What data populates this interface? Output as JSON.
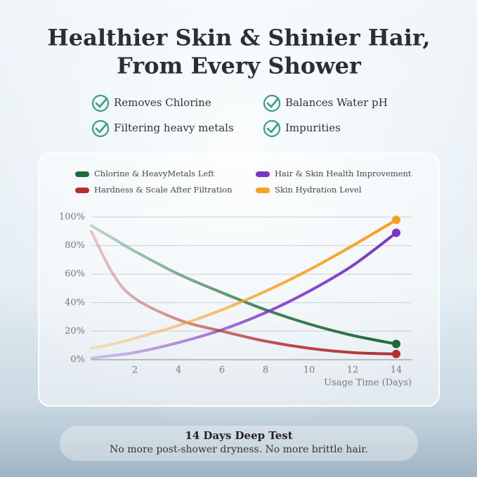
{
  "header": {
    "title": [
      "Healthier Skin & Shinier Hair,",
      "From Every Shower"
    ]
  },
  "features": [
    "Removes Chlorine",
    "Balances Water pH",
    "Filtering heavy metals",
    "Impurities"
  ],
  "chart_data": {
    "type": "line",
    "x": [
      0,
      1,
      2,
      4,
      6,
      8,
      10,
      12,
      14
    ],
    "series": [
      {
        "name": "Chlorine & HeavyMetals Left",
        "color": "#1f6a3b",
        "values": [
          94,
          85,
          76,
          60,
          47,
          35,
          25,
          17,
          11
        ]
      },
      {
        "name": "Hair & Skin Health Improvement",
        "color": "#7b35c4",
        "values": [
          1,
          3,
          5,
          12,
          21,
          33,
          48,
          66,
          89
        ]
      },
      {
        "name": "Hardness & Scale After Filtration",
        "color": "#b3302e",
        "values": [
          90,
          60,
          43,
          28,
          20,
          13,
          8,
          5,
          4
        ]
      },
      {
        "name": "Skin Hydration Level",
        "color": "#f7a021",
        "values": [
          8,
          11,
          15,
          24,
          35,
          48,
          63,
          80,
          98
        ]
      }
    ],
    "xlim": [
      0,
      14
    ],
    "xticks": [
      2,
      4,
      6,
      8,
      10,
      12,
      14
    ],
    "ylim": [
      0,
      100
    ],
    "yticks": [
      {
        "value": 0,
        "label": "0%"
      },
      {
        "value": 20,
        "label": "20%"
      },
      {
        "value": 40,
        "label": "40%"
      },
      {
        "value": 60,
        "label": "60%"
      },
      {
        "value": 80,
        "label": "80%"
      },
      {
        "value": 100,
        "label": "100%"
      }
    ],
    "x_label": "Usage Time (Days)",
    "grid": true,
    "end_markers": true
  },
  "footer": {
    "title": "14 Days Deep Test",
    "subtitle": "No more post-shower dryness. No more brittle hair."
  }
}
